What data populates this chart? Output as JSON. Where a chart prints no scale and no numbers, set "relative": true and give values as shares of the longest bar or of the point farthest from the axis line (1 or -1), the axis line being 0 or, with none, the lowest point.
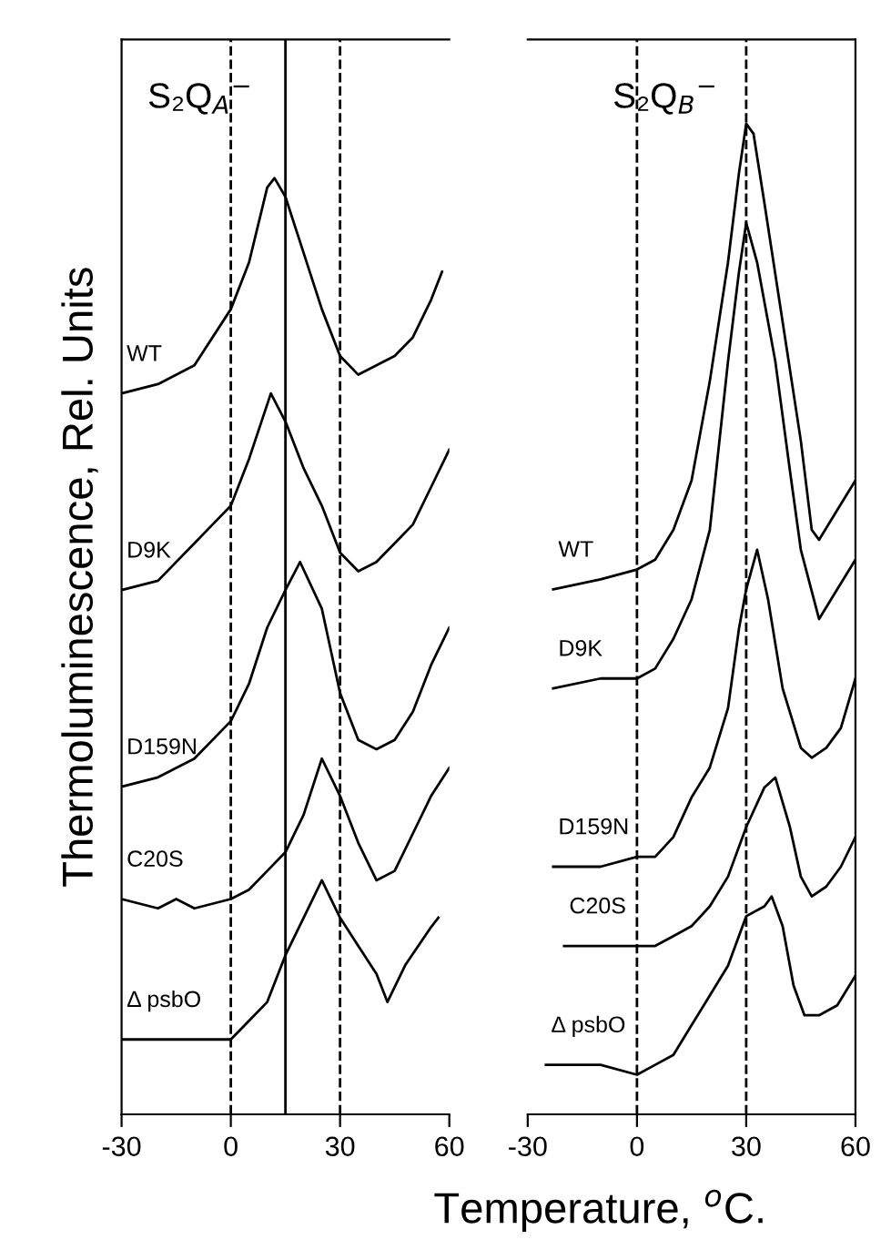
{
  "chart_data": [
    {
      "type": "line",
      "title": "S₂Q$_{A}$$^{−}$",
      "ylabel": "Thermoluminescence, Rel. Units",
      "xlabel": "Temperature, $^{o}$C.",
      "relative": true,
      "xlim": [
        -30,
        60
      ],
      "xticks": [
        -30,
        0,
        30,
        60
      ],
      "tick_labels": "x",
      "grid": false,
      "legend": false,
      "marker": "none",
      "line_style": "solid",
      "ref_lines": [
        {
          "axis": "x",
          "value": 0,
          "color": "#000000",
          "line_style": "dashed"
        },
        {
          "axis": "x",
          "value": 15,
          "color": "#000000",
          "line_style": "solid"
        },
        {
          "axis": "x",
          "value": 30,
          "color": "#000000",
          "line_style": "dashed"
        }
      ],
      "series": [
        {
          "name": "WT",
          "color": "#000000",
          "x": [
            -30,
            -20,
            -10,
            0,
            5,
            10,
            12,
            15,
            20,
            25,
            30,
            35,
            40,
            45,
            50,
            55,
            58
          ],
          "values": [
            0.77,
            0.78,
            0.8,
            0.86,
            0.91,
            0.99,
            1,
            0.98,
            0.92,
            0.86,
            0.81,
            0.79,
            0.8,
            0.81,
            0.83,
            0.87,
            0.9
          ]
        },
        {
          "name": "D9K",
          "color": "#000000",
          "x": [
            -30,
            -20,
            -10,
            -5,
            0,
            5,
            11,
            15,
            20,
            25,
            30,
            35,
            40,
            45,
            50,
            55,
            60
          ],
          "values": [
            0.56,
            0.57,
            0.61,
            0.63,
            0.65,
            0.7,
            0.77,
            0.74,
            0.69,
            0.65,
            0.6,
            0.58,
            0.59,
            0.61,
            0.63,
            0.67,
            0.71
          ]
        },
        {
          "name": "D159N",
          "color": "#000000",
          "x": [
            -30,
            -20,
            -10,
            0,
            5,
            10,
            15,
            19,
            25,
            30,
            35,
            40,
            45,
            50,
            55,
            60
          ],
          "values": [
            0.35,
            0.36,
            0.38,
            0.42,
            0.46,
            0.52,
            0.56,
            0.59,
            0.54,
            0.45,
            0.4,
            0.39,
            0.4,
            0.43,
            0.48,
            0.52
          ]
        },
        {
          "name": "C20S",
          "color": "#000000",
          "x": [
            -30,
            -20,
            -15,
            -10,
            0,
            5,
            10,
            15,
            20,
            25,
            30,
            35,
            40,
            45,
            50,
            55,
            60
          ],
          "values": [
            0.23,
            0.22,
            0.23,
            0.22,
            0.23,
            0.24,
            0.26,
            0.28,
            0.32,
            0.38,
            0.34,
            0.29,
            0.25,
            0.26,
            0.3,
            0.34,
            0.37
          ]
        },
        {
          "name": "Δ psbO",
          "color": "#000000",
          "x": [
            -30,
            -20,
            -10,
            0,
            5,
            10,
            15,
            20,
            25,
            30,
            35,
            40,
            43,
            48,
            55,
            57
          ],
          "values": [
            0.08,
            0.08,
            0.08,
            0.08,
            0.1,
            0.12,
            0.17,
            0.21,
            0.25,
            0.21,
            0.18,
            0.15,
            0.12,
            0.16,
            0.2,
            0.21
          ]
        }
      ]
    },
    {
      "type": "line",
      "title": "S₂Q$_{B}$$^{−}$",
      "relative": true,
      "xlim": [
        -30,
        60
      ],
      "xticks": [
        -30,
        0,
        30,
        60
      ],
      "tick_labels": "x",
      "grid": false,
      "legend": false,
      "marker": "none",
      "line_style": "solid",
      "ref_lines": [
        {
          "axis": "x",
          "value": 0,
          "color": "#000000",
          "line_style": "dashed"
        },
        {
          "axis": "x",
          "value": 30,
          "color": "#000000",
          "line_style": "dashed"
        }
      ],
      "series": [
        {
          "name": "WT",
          "color": "#000000",
          "x": [
            -23,
            -10,
            0,
            5,
            10,
            15,
            20,
            25,
            28,
            30,
            32,
            35,
            40,
            45,
            48,
            50,
            55,
            60
          ],
          "values": [
            0.53,
            0.54,
            0.55,
            0.56,
            0.59,
            0.64,
            0.74,
            0.86,
            0.95,
            1,
            0.99,
            0.92,
            0.8,
            0.68,
            0.59,
            0.58,
            0.61,
            0.64
          ]
        },
        {
          "name": "D9K",
          "color": "#000000",
          "x": [
            -23,
            -10,
            0,
            5,
            10,
            15,
            20,
            25,
            28,
            30,
            33,
            38,
            42,
            45,
            50,
            55,
            60
          ],
          "values": [
            0.43,
            0.44,
            0.44,
            0.45,
            0.48,
            0.52,
            0.59,
            0.76,
            0.85,
            0.9,
            0.86,
            0.76,
            0.65,
            0.57,
            0.5,
            0.53,
            0.56
          ]
        },
        {
          "name": "D159N",
          "color": "#000000",
          "x": [
            -23,
            -10,
            0,
            5,
            10,
            15,
            20,
            25,
            28,
            30,
            33,
            36,
            40,
            45,
            48,
            52,
            56,
            60
          ],
          "values": [
            0.25,
            0.25,
            0.26,
            0.26,
            0.28,
            0.32,
            0.35,
            0.41,
            0.49,
            0.53,
            0.57,
            0.52,
            0.43,
            0.37,
            0.36,
            0.37,
            0.39,
            0.44
          ]
        },
        {
          "name": "C20S",
          "color": "#000000",
          "x": [
            -20,
            -10,
            0,
            5,
            10,
            15,
            20,
            25,
            30,
            35,
            38,
            42,
            45,
            48,
            52,
            56,
            60
          ],
          "values": [
            0.17,
            0.17,
            0.17,
            0.17,
            0.18,
            0.19,
            0.21,
            0.24,
            0.29,
            0.33,
            0.34,
            0.29,
            0.24,
            0.22,
            0.23,
            0.25,
            0.28
          ]
        },
        {
          "name": "Δ psbO",
          "color": "#000000",
          "x": [
            -25,
            -10,
            0,
            5,
            10,
            15,
            20,
            25,
            30,
            35,
            37,
            40,
            43,
            46,
            50,
            55,
            60
          ],
          "values": [
            0.05,
            0.05,
            0.04,
            0.05,
            0.06,
            0.09,
            0.12,
            0.15,
            0.2,
            0.21,
            0.22,
            0.19,
            0.13,
            0.1,
            0.1,
            0.11,
            0.14
          ]
        }
      ]
    }
  ]
}
